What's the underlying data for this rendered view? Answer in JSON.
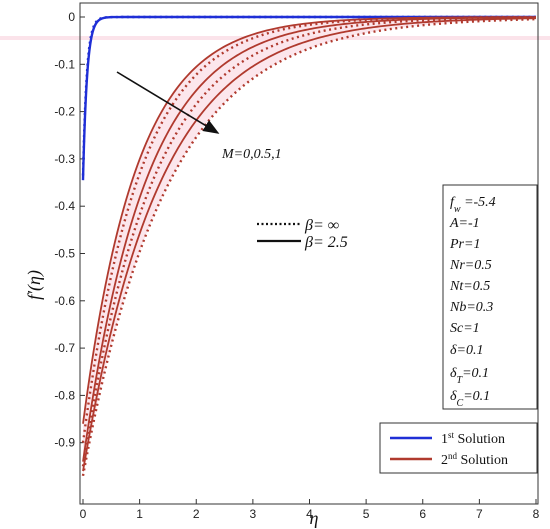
{
  "chart_data": {
    "type": "line",
    "xlabel": "η",
    "ylabel": "f′(η)",
    "xlim": [
      0,
      8
    ],
    "ylim": [
      -1,
      0
    ],
    "x_ticks": [
      "0",
      "1",
      "2",
      "3",
      "4",
      "5",
      "6",
      "7",
      "8"
    ],
    "y_ticks": [
      "0",
      "-0.1",
      "-0.2",
      "-0.3",
      "-0.4",
      "-0.5",
      "-0.6",
      "-0.7",
      "-0.8",
      "-0.9"
    ],
    "annotation": {
      "text": "M=0,0.5,1"
    },
    "line_style_legend": [
      {
        "style": "dotted",
        "label": "β= ∞"
      },
      {
        "style": "solid",
        "label": "β= 2.5"
      }
    ],
    "parameters": {
      "fw": "-5.4",
      "A": "-1",
      "Pr": "1",
      "Nr": "0.5",
      "Nt": "0.5",
      "Nb": "0.3",
      "Sc": "1",
      "delta": "0.1",
      "deltaT": "0.1",
      "deltaC": "0.1"
    },
    "legend": [
      {
        "label_base": "1",
        "label_sup": "st",
        "label_rest": " Solution",
        "color": "#1f2fd6"
      },
      {
        "label_base": "2",
        "label_sup": "nd",
        "label_rest": " Solution",
        "color": "#b03a2e"
      }
    ],
    "series": [
      {
        "name": "1st Solution",
        "solution": 1,
        "style": "solid",
        "start": -0.345,
        "k": 14,
        "color": "#1f2fd6"
      },
      {
        "name": "1st Solution",
        "solution": 1,
        "style": "dotted",
        "start": -0.335,
        "k": 15,
        "color": "#1f2fd6"
      },
      {
        "solution": 2,
        "style": "solid",
        "M": "0",
        "start": -0.86,
        "k": 1.05,
        "color": "#b03a2e"
      },
      {
        "solution": 2,
        "style": "solid",
        "M": "0.5",
        "start": -0.94,
        "k": 0.9,
        "color": "#b03a2e"
      },
      {
        "solution": 2,
        "style": "solid",
        "M": "1",
        "start": -0.96,
        "k": 0.74,
        "color": "#b03a2e"
      },
      {
        "solution": 2,
        "style": "dotted",
        "M": "0",
        "start": -0.9,
        "k": 1.0,
        "color": "#b03a2e"
      },
      {
        "solution": 2,
        "style": "dotted",
        "M": "0.5",
        "start": -0.95,
        "k": 0.82,
        "color": "#b03a2e"
      },
      {
        "solution": 2,
        "style": "dotted",
        "M": "1",
        "start": -0.97,
        "k": 0.67,
        "color": "#b03a2e"
      }
    ]
  }
}
